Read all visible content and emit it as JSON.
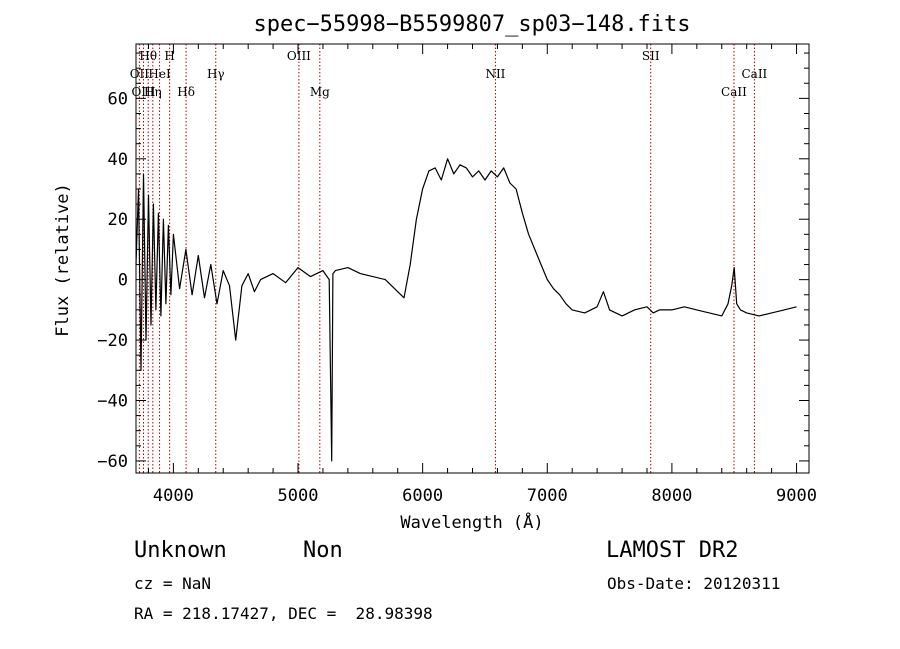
{
  "chart_data": {
    "type": "line",
    "title": "spec−55998−B5599807_sp03−148.fits",
    "xlabel": "Wavelength (Å)",
    "ylabel": "Flux (relative)",
    "xlim": [
      3700,
      9100
    ],
    "ylim": [
      -64,
      78
    ],
    "xticks": [
      4000,
      5000,
      6000,
      7000,
      8000,
      9000
    ],
    "yticks": [
      -60,
      -40,
      -20,
      0,
      20,
      40,
      60
    ],
    "ytick_labels": [
      "−60",
      "−40",
      "−20",
      "0",
      "20",
      "40",
      "60"
    ],
    "grid": false,
    "series": [
      {
        "color": "#000000",
        "x": [
          3700,
          3720,
          3740,
          3760,
          3780,
          3800,
          3820,
          3840,
          3860,
          3880,
          3900,
          3920,
          3940,
          3960,
          3980,
          4000,
          4050,
          4100,
          4150,
          4200,
          4250,
          4300,
          4350,
          4400,
          4450,
          4500,
          4550,
          4600,
          4650,
          4700,
          4800,
          4900,
          5000,
          5100,
          5200,
          5250,
          5270,
          5280,
          5300,
          5400,
          5500,
          5600,
          5700,
          5800,
          5850,
          5900,
          5950,
          6000,
          6050,
          6100,
          6150,
          6200,
          6250,
          6300,
          6350,
          6400,
          6450,
          6500,
          6550,
          6600,
          6650,
          6700,
          6750,
          6800,
          6850,
          6900,
          6950,
          7000,
          7050,
          7100,
          7150,
          7200,
          7300,
          7400,
          7450,
          7500,
          7550,
          7600,
          7700,
          7800,
          7850,
          7900,
          8000,
          8100,
          8200,
          8300,
          8400,
          8450,
          8480,
          8500,
          8520,
          8550,
          8600,
          8700,
          8800,
          8900,
          9000
        ],
        "y": [
          5,
          30,
          -30,
          35,
          -20,
          28,
          -15,
          25,
          -10,
          22,
          -12,
          20,
          -8,
          18,
          -5,
          15,
          -3,
          10,
          -5,
          8,
          -6,
          5,
          -8,
          3,
          -2,
          -20,
          -2,
          2,
          -4,
          0,
          2,
          -1,
          4,
          1,
          3,
          0,
          -60,
          2,
          3,
          4,
          2,
          1,
          0,
          -4,
          -6,
          5,
          20,
          30,
          36,
          37,
          33,
          40,
          35,
          38,
          37,
          34,
          36,
          33,
          36,
          34,
          37,
          32,
          30,
          22,
          15,
          10,
          5,
          0,
          -3,
          -5,
          -8,
          -10,
          -11,
          -9,
          -4,
          -10,
          -11,
          -12,
          -10,
          -9,
          -11,
          -10,
          -10,
          -9,
          -10,
          -11,
          -12,
          -8,
          -2,
          4,
          -8,
          -10,
          -11,
          -12,
          -11,
          -10,
          -9
        ]
      }
    ],
    "lines": [
      {
        "label": "Hθ",
        "wavelength": 3798,
        "label_row": 0
      },
      {
        "label": "H",
        "wavelength": 3970,
        "label_row": 0
      },
      {
        "label": "OIII",
        "wavelength": 5007,
        "label_row": 0
      },
      {
        "label": "SII",
        "wavelength": 7830,
        "label_row": 0
      },
      {
        "label": "OII",
        "wavelength": 3727,
        "label_row": 1
      },
      {
        "label": "HeI",
        "wavelength": 3889,
        "label_row": 1
      },
      {
        "label": "Hγ",
        "wavelength": 4340,
        "label_row": 1
      },
      {
        "label": "NII",
        "wavelength": 6584,
        "label_row": 1
      },
      {
        "label": "CaII",
        "wavelength": 8662,
        "label_row": 1
      },
      {
        "label": "OIII",
        "wavelength": 3760,
        "label_row": 2
      },
      {
        "label": "Hη",
        "wavelength": 3835,
        "label_row": 2
      },
      {
        "label": "Hδ",
        "wavelength": 4102,
        "label_row": 2
      },
      {
        "label": "Mg",
        "wavelength": 5175,
        "label_row": 2
      },
      {
        "label": "CaII",
        "wavelength": 8498,
        "label_row": 2
      }
    ]
  },
  "info": {
    "class_label": "Unknown",
    "subclass_label": "Non",
    "survey": "LAMOST DR2",
    "redshift": "cz = NaN",
    "obs_date": "Obs-Date: 20120311",
    "coordinates": "RA = 218.17427, DEC =  28.98398"
  }
}
